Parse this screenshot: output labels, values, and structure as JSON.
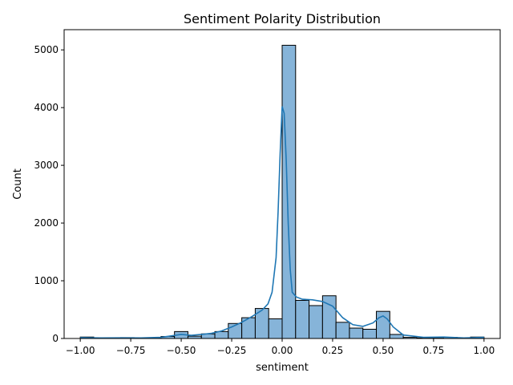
{
  "chart_data": {
    "type": "bar",
    "title": "Sentiment Polarity Distribution",
    "xlabel": "sentiment",
    "ylabel": "Count",
    "xlim": [
      -1.08,
      1.08
    ],
    "ylim": [
      0,
      5350
    ],
    "grid": false,
    "legend": "none",
    "x_ticks": [
      -1.0,
      -0.75,
      -0.5,
      -0.25,
      0.0,
      0.25,
      0.5,
      0.75,
      1.0
    ],
    "x_tick_labels": [
      "−1.00",
      "−0.75",
      "−0.50",
      "−0.25",
      "0.00",
      "0.25",
      "0.50",
      "0.75",
      "1.00"
    ],
    "y_ticks": [
      0,
      1000,
      2000,
      3000,
      4000,
      5000
    ],
    "y_tick_labels": [
      "0",
      "1000",
      "2000",
      "3000",
      "4000",
      "5000"
    ],
    "bin_edges": [
      -1.0,
      -0.9333,
      -0.8667,
      -0.8,
      -0.7333,
      -0.6667,
      -0.6,
      -0.5333,
      -0.4667,
      -0.4,
      -0.3333,
      -0.2667,
      -0.2,
      -0.1333,
      -0.0667,
      0.0,
      0.0667,
      0.1333,
      0.2,
      0.2667,
      0.3333,
      0.4,
      0.4667,
      0.5333,
      0.6,
      0.6667,
      0.7333,
      0.8,
      0.8667,
      0.9333,
      1.0
    ],
    "counts": [
      25,
      5,
      10,
      15,
      8,
      10,
      35,
      120,
      40,
      80,
      120,
      260,
      360,
      520,
      340,
      5080,
      660,
      570,
      740,
      280,
      180,
      160,
      470,
      70,
      20,
      10,
      15,
      20,
      10,
      25
    ],
    "kde": {
      "x": [
        -1.0,
        -0.9,
        -0.8,
        -0.7,
        -0.6,
        -0.55,
        -0.5,
        -0.45,
        -0.4,
        -0.35,
        -0.3,
        -0.25,
        -0.2,
        -0.15,
        -0.1,
        -0.07,
        -0.05,
        -0.03,
        -0.02,
        -0.01,
        0.0,
        0.01,
        0.02,
        0.03,
        0.04,
        0.05,
        0.07,
        0.1,
        0.15,
        0.2,
        0.25,
        0.3,
        0.35,
        0.4,
        0.45,
        0.48,
        0.5,
        0.52,
        0.55,
        0.6,
        0.7,
        0.8,
        0.9,
        1.0
      ],
      "y": [
        15,
        10,
        12,
        10,
        20,
        45,
        70,
        55,
        70,
        90,
        130,
        200,
        280,
        380,
        490,
        600,
        800,
        1400,
        2200,
        3200,
        4020,
        3900,
        3100,
        2000,
        1200,
        800,
        720,
        680,
        670,
        640,
        560,
        360,
        240,
        210,
        270,
        360,
        390,
        340,
        200,
        60,
        20,
        25,
        10,
        20
      ]
    },
    "bar_fill": "#86b4d9",
    "bar_edge": "#000000",
    "line_color": "#1f77b4"
  }
}
